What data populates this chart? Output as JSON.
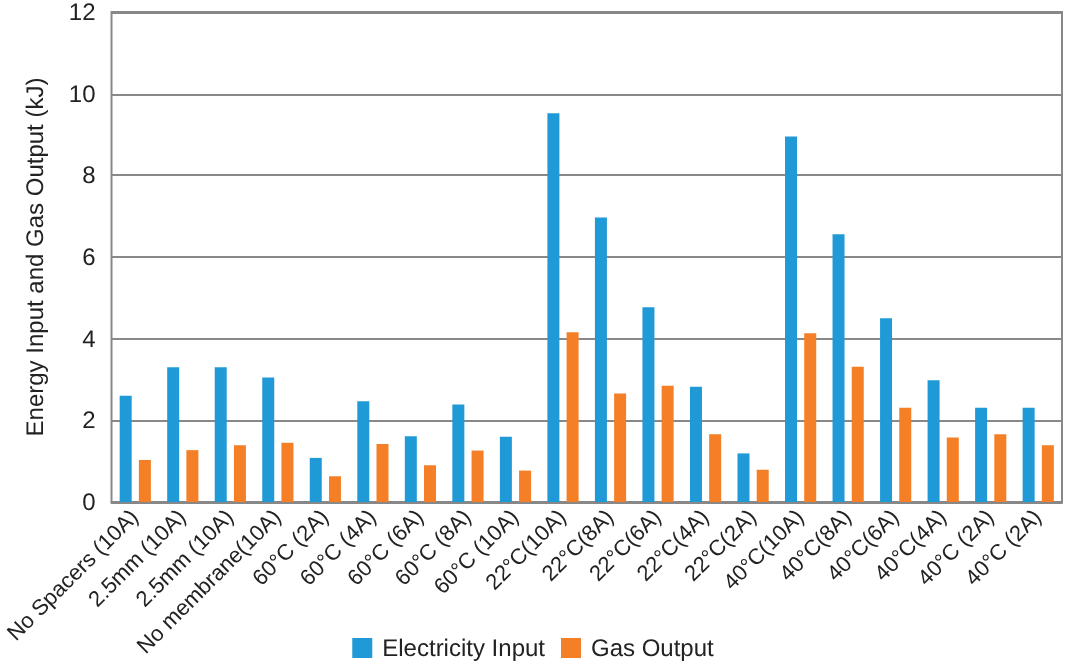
{
  "chart_data": {
    "type": "bar",
    "ylabel": "Energy Input and Gas Output (kJ)",
    "categories": [
      "No Spacers (10A)",
      "2.5mm (10A)",
      "2.5mm (10A)",
      "No membrane(10A)",
      "60°C (2A)",
      "60°C (4A)",
      "60°C (6A)",
      "60°C (8A)",
      "60°C (10A)",
      "22°C(10A)",
      "22°C(8A)",
      "22°C(6A)",
      "22°C(4A)",
      "22°C(2A)",
      "40°C(10A)",
      "40°C(8A)",
      "40°C(6A)",
      "40°C(4A)",
      "40°C (2A)",
      "40°C (2A)"
    ],
    "series": [
      {
        "name": "Electricity Input",
        "color": "#1f9ad6",
        "values": [
          2.6,
          3.3,
          3.3,
          3.05,
          1.08,
          2.47,
          1.61,
          2.39,
          1.6,
          9.52,
          6.97,
          4.77,
          2.82,
          1.19,
          8.95,
          6.56,
          4.5,
          2.98,
          2.31,
          2.31
        ]
      },
      {
        "name": "Gas Output",
        "color": "#f47f26",
        "values": [
          1.03,
          1.27,
          1.39,
          1.45,
          0.63,
          1.42,
          0.9,
          1.26,
          0.77,
          4.16,
          2.66,
          2.85,
          1.66,
          0.79,
          4.13,
          3.31,
          2.31,
          1.58,
          1.66,
          1.39
        ]
      }
    ],
    "ylim": [
      0,
      12
    ],
    "yticks": [
      0,
      2,
      4,
      6,
      8,
      10,
      12
    ],
    "grid": "y",
    "legend": "bottom"
  }
}
